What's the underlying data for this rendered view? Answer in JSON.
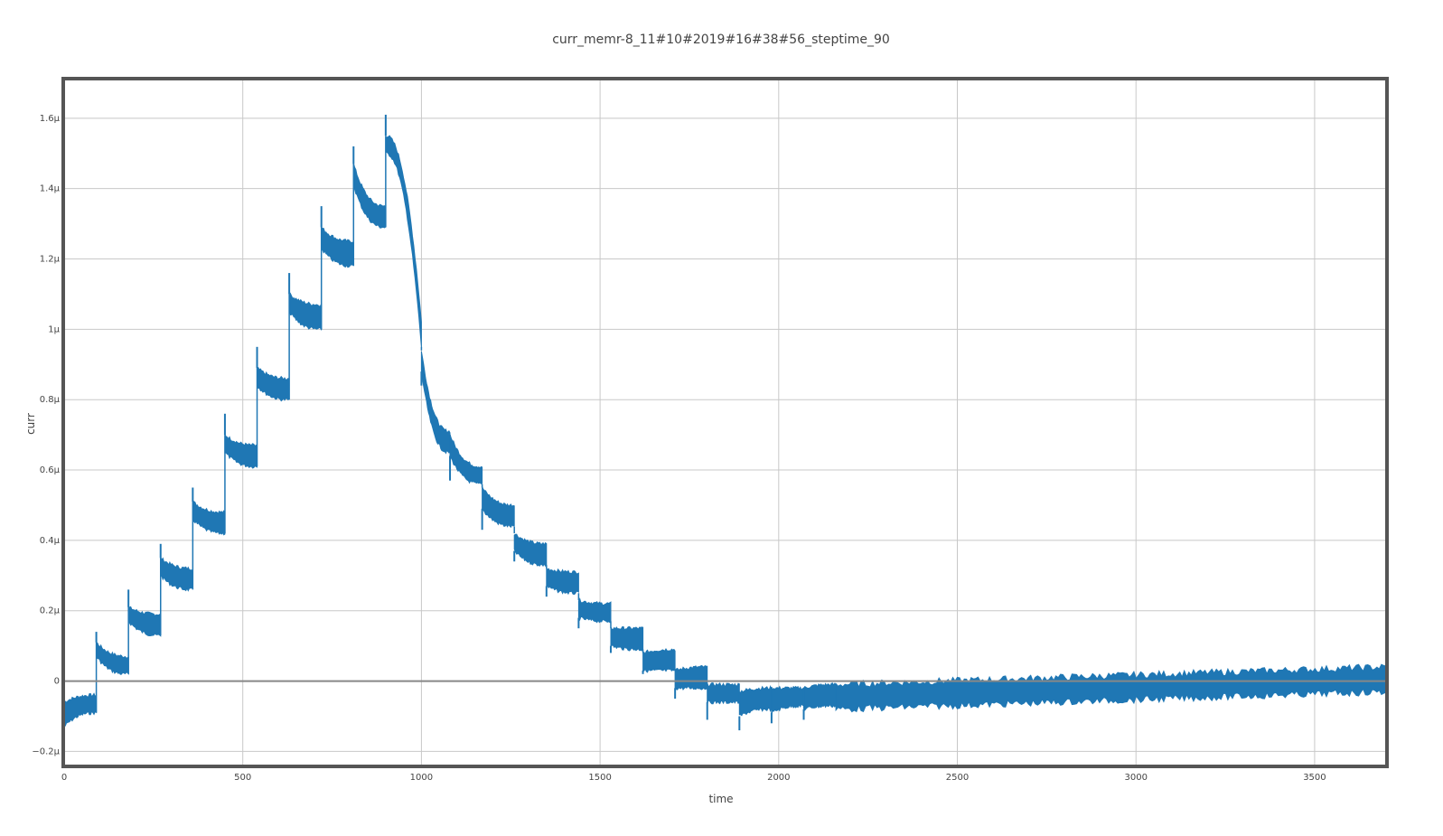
{
  "chart_data": {
    "type": "line",
    "title": "curr_memr-8_11#10#2019#16#38#56_steptime_90",
    "xlabel": "time",
    "ylabel": "curr",
    "xlim": [
      0,
      3700
    ],
    "ylim": [
      -0.24,
      1.71
    ],
    "x_ticks": [
      {
        "value": 0,
        "label": "0"
      },
      {
        "value": 500,
        "label": "500"
      },
      {
        "value": 1000,
        "label": "1000"
      },
      {
        "value": 1500,
        "label": "1500"
      },
      {
        "value": 2000,
        "label": "2000"
      },
      {
        "value": 2500,
        "label": "2500"
      },
      {
        "value": 3000,
        "label": "3000"
      },
      {
        "value": 3500,
        "label": "3500"
      }
    ],
    "y_ticks": [
      {
        "value": -0.2,
        "label": "−0.2μ"
      },
      {
        "value": 0,
        "label": "0"
      },
      {
        "value": 0.2,
        "label": "0.2μ"
      },
      {
        "value": 0.4,
        "label": "0.4μ"
      },
      {
        "value": 0.6,
        "label": "0.6μ"
      },
      {
        "value": 0.8,
        "label": "0.8μ"
      },
      {
        "value": 1.0,
        "label": "1μ"
      },
      {
        "value": 1.2,
        "label": "1.2μ"
      },
      {
        "value": 1.4,
        "label": "1.4μ"
      },
      {
        "value": 1.6,
        "label": "1.6μ"
      }
    ],
    "grid": true,
    "legend": "none",
    "series": [
      {
        "color": "#1f77b4",
        "unit_note": "values in μA (1e-6)",
        "segments": [
          {
            "x0": 0,
            "x1": 90,
            "spike": null,
            "start": [
              -0.06,
              -0.13
            ],
            "end": [
              -0.04,
              -0.09
            ]
          },
          {
            "x0": 90,
            "x1": 180,
            "spike": 0.14,
            "start": [
              0.11,
              0.07
            ],
            "end": [
              0.07,
              0.02
            ]
          },
          {
            "x0": 180,
            "x1": 270,
            "spike": 0.26,
            "start": [
              0.21,
              0.17
            ],
            "end": [
              0.19,
              0.13
            ]
          },
          {
            "x0": 270,
            "x1": 360,
            "spike": 0.39,
            "start": [
              0.35,
              0.3
            ],
            "end": [
              0.32,
              0.26
            ]
          },
          {
            "x0": 360,
            "x1": 450,
            "spike": 0.55,
            "start": [
              0.51,
              0.46
            ],
            "end": [
              0.48,
              0.42
            ]
          },
          {
            "x0": 450,
            "x1": 540,
            "spike": 0.76,
            "start": [
              0.7,
              0.65
            ],
            "end": [
              0.67,
              0.61
            ]
          },
          {
            "x0": 540,
            "x1": 630,
            "spike": 0.95,
            "start": [
              0.89,
              0.84
            ],
            "end": [
              0.86,
              0.8
            ]
          },
          {
            "x0": 630,
            "x1": 720,
            "spike": 1.16,
            "start": [
              1.1,
              1.05
            ],
            "end": [
              1.07,
              1.0
            ]
          },
          {
            "x0": 720,
            "x1": 810,
            "spike": 1.35,
            "start": [
              1.29,
              1.23
            ],
            "end": [
              1.25,
              1.18
            ]
          },
          {
            "x0": 810,
            "x1": 900,
            "spike": 1.52,
            "start": [
              1.47,
              1.41
            ],
            "end": [
              1.35,
              1.29
            ]
          },
          {
            "x0": 900,
            "x1": 1000,
            "spike": 1.61,
            "start": [
              1.55,
              1.5
            ],
            "end": [
              1.02,
              0.95
            ],
            "curve": "drop"
          },
          {
            "x0": 1000,
            "x1": 1080,
            "spike": 0.84,
            "start": [
              0.94,
              0.88
            ],
            "end": [
              0.71,
              0.65
            ],
            "spike_down": true
          },
          {
            "x0": 1080,
            "x1": 1170,
            "spike": 0.57,
            "start": [
              0.7,
              0.64
            ],
            "end": [
              0.61,
              0.56
            ],
            "spike_down": true
          },
          {
            "x0": 1170,
            "x1": 1260,
            "spike": 0.43,
            "start": [
              0.55,
              0.49
            ],
            "end": [
              0.5,
              0.44
            ],
            "spike_down": true
          },
          {
            "x0": 1260,
            "x1": 1350,
            "spike": 0.34,
            "start": [
              0.42,
              0.37
            ],
            "end": [
              0.39,
              0.33
            ],
            "spike_down": true
          },
          {
            "x0": 1350,
            "x1": 1440,
            "spike": 0.24,
            "start": [
              0.32,
              0.27
            ],
            "end": [
              0.31,
              0.25
            ],
            "spike_down": true
          },
          {
            "x0": 1440,
            "x1": 1530,
            "spike": 0.15,
            "start": [
              0.23,
              0.18
            ],
            "end": [
              0.22,
              0.17
            ],
            "spike_down": true
          },
          {
            "x0": 1530,
            "x1": 1620,
            "spike": 0.08,
            "start": [
              0.15,
              0.1
            ],
            "end": [
              0.15,
              0.09
            ],
            "spike_down": true
          },
          {
            "x0": 1620,
            "x1": 1710,
            "spike": 0.02,
            "start": [
              0.08,
              0.03
            ],
            "end": [
              0.09,
              0.03
            ],
            "spike_down": true
          },
          {
            "x0": 1710,
            "x1": 1800,
            "spike": -0.05,
            "start": [
              0.03,
              -0.02
            ],
            "end": [
              0.04,
              -0.02
            ],
            "spike_down": true
          },
          {
            "x0": 1800,
            "x1": 1890,
            "spike": -0.11,
            "start": [
              -0.01,
              -0.06
            ],
            "end": [
              -0.01,
              -0.06
            ],
            "spike_down": true
          },
          {
            "x0": 1890,
            "x1": 1980,
            "spike": -0.14,
            "start": [
              -0.03,
              -0.1
            ],
            "end": [
              -0.02,
              -0.08
            ],
            "spike_down": true
          },
          {
            "x0": 1980,
            "x1": 2070,
            "spike": -0.12,
            "start": [
              -0.02,
              -0.09
            ],
            "end": [
              -0.02,
              -0.07
            ],
            "spike_down": true
          },
          {
            "x0": 2070,
            "x1": 2160,
            "spike": -0.11,
            "start": [
              -0.02,
              -0.08
            ],
            "end": [
              -0.01,
              -0.07
            ],
            "spike_down": true
          },
          {
            "x0": 2160,
            "x1": 3700,
            "spike": null,
            "start": [
              -0.01,
              -0.08
            ],
            "end": [
              0.04,
              -0.03
            ],
            "noise": true
          }
        ]
      }
    ]
  }
}
